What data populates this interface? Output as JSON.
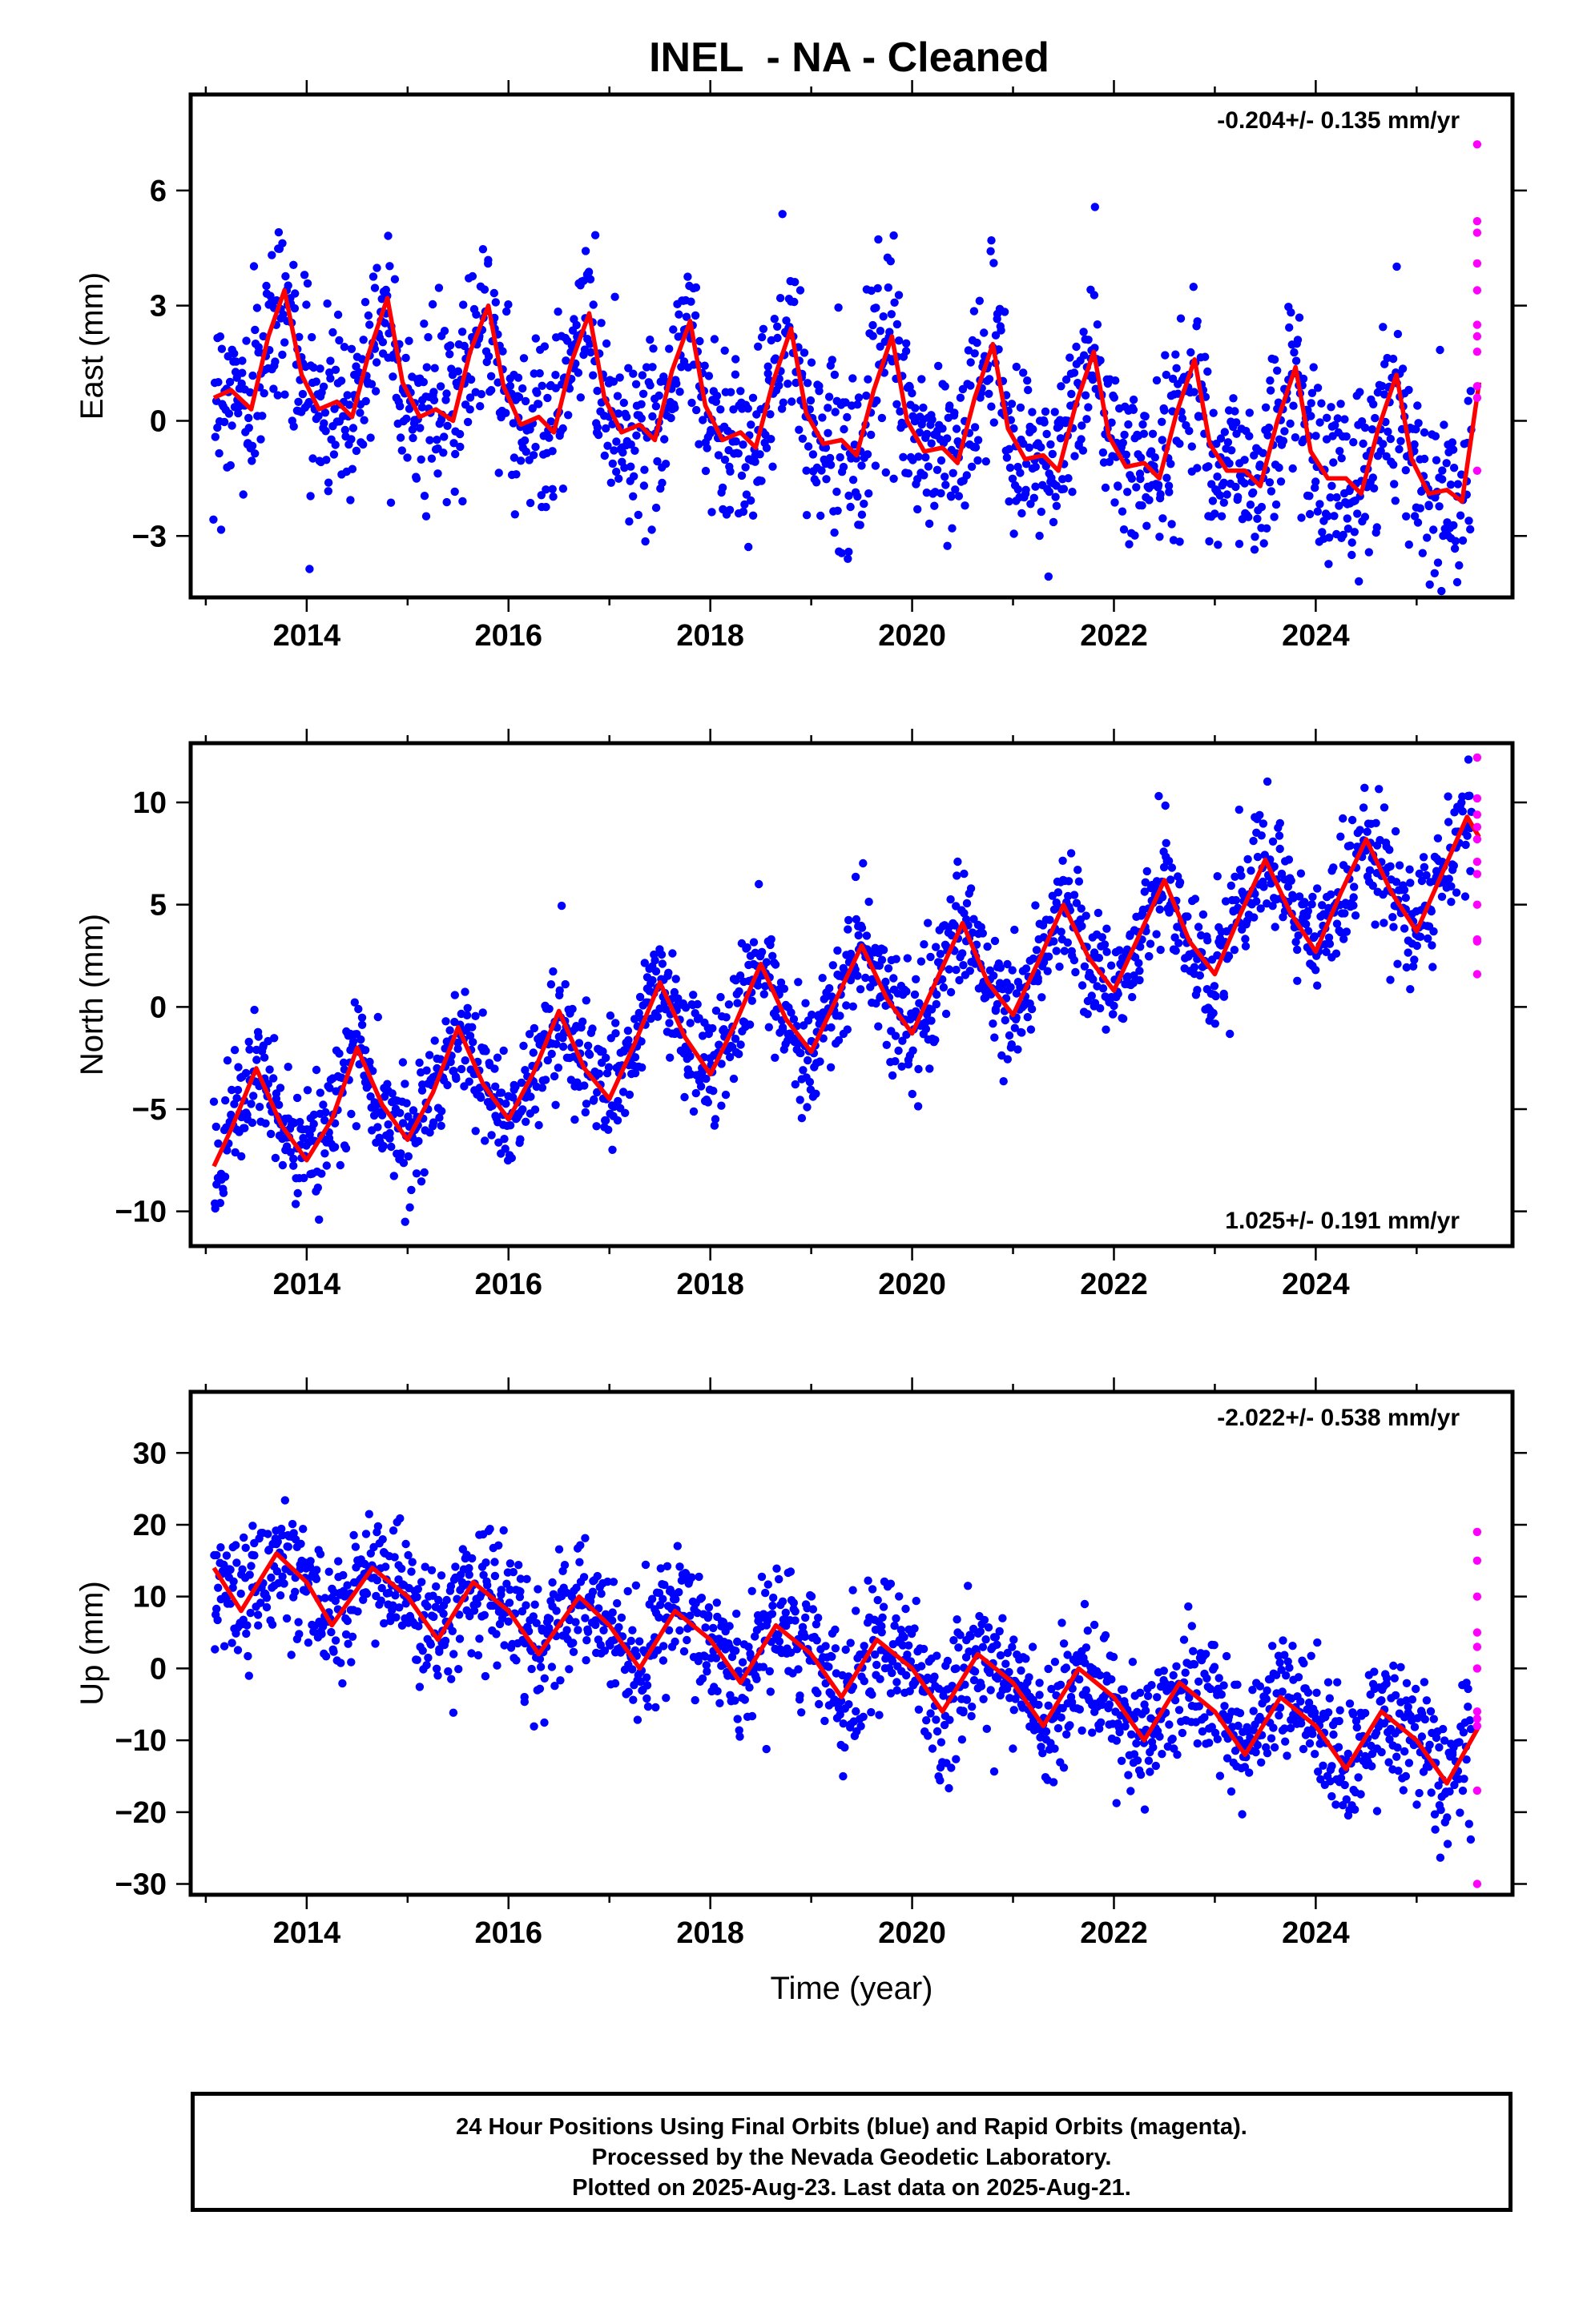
{
  "title": "INEL  - NA - Cleaned",
  "footer": {
    "line1": "24 Hour Positions Using Final Orbits (blue) and Rapid Orbits (magenta).",
    "line2": "Processed by the Nevada Geodetic Laboratory.",
    "line3": "Plotted on 2025-Aug-23. Last data on 2025-Aug-21."
  },
  "colors": {
    "final_orbits": "#0000ff",
    "rapid_orbits": "#ff00ff",
    "model": "#ff0000",
    "axis": "#000000"
  },
  "chart_data": [
    {
      "type": "scatter",
      "panel": "east",
      "title": "",
      "xlabel": "",
      "ylabel": "East (mm)",
      "xlim": [
        2012.85,
        2025.95
      ],
      "ylim": [
        -4.6,
        8.5
      ],
      "xticks": [
        2014,
        2016,
        2018,
        2020,
        2022,
        2024
      ],
      "xtick_labels": [
        "2014",
        "2016",
        "2018",
        "2020",
        "2022",
        "2024"
      ],
      "yticks": [
        -3,
        0,
        3,
        6
      ],
      "ytick_labels": [
        "−3",
        "0",
        "3",
        "6"
      ],
      "rate_label": "-0.204+/- 0.135 mm/yr",
      "rate_position": "top-right",
      "grid": false,
      "series": [
        {
          "kind": "model",
          "x": [
            2013.08,
            2013.25,
            2013.45,
            2013.62,
            2013.78,
            2013.95,
            2014.12,
            2014.3,
            2014.45,
            2014.62,
            2014.8,
            2014.95,
            2015.12,
            2015.28,
            2015.45,
            2015.62,
            2015.8,
            2015.95,
            2016.12,
            2016.3,
            2016.45,
            2016.62,
            2016.8,
            2016.95,
            2017.12,
            2017.3,
            2017.45,
            2017.62,
            2017.8,
            2017.95,
            2018.12,
            2018.3,
            2018.45,
            2018.62,
            2018.8,
            2018.95,
            2019.12,
            2019.3,
            2019.45,
            2019.62,
            2019.8,
            2019.95,
            2020.12,
            2020.3,
            2020.45,
            2020.62,
            2020.8,
            2020.95,
            2021.12,
            2021.3,
            2021.45,
            2021.62,
            2021.8,
            2021.95,
            2022.12,
            2022.3,
            2022.45,
            2022.62,
            2022.8,
            2022.95,
            2023.12,
            2023.3,
            2023.45,
            2023.62,
            2023.8,
            2023.95,
            2024.12,
            2024.3,
            2024.45,
            2024.62,
            2024.8,
            2024.95,
            2025.12,
            2025.3,
            2025.45,
            2025.62
          ],
          "y": [
            0.6,
            0.8,
            0.3,
            2.2,
            3.4,
            1.2,
            0.3,
            0.5,
            0.1,
            1.8,
            3.2,
            1.0,
            0.1,
            0.3,
            0.0,
            1.8,
            3.0,
            0.9,
            -0.1,
            0.1,
            -0.3,
            1.5,
            2.8,
            0.6,
            -0.3,
            -0.1,
            -0.5,
            1.3,
            2.6,
            0.4,
            -0.5,
            -0.3,
            -0.7,
            1.0,
            2.4,
            0.2,
            -0.6,
            -0.5,
            -0.9,
            0.8,
            2.2,
            0.0,
            -0.8,
            -0.7,
            -1.1,
            0.6,
            2.0,
            -0.2,
            -1.0,
            -0.9,
            -1.3,
            0.4,
            1.8,
            -0.4,
            -1.2,
            -1.1,
            -1.5,
            0.2,
            1.6,
            -0.6,
            -1.3,
            -1.3,
            -1.7,
            0.0,
            1.4,
            -0.8,
            -1.5,
            -1.5,
            -1.9,
            -0.2,
            1.2,
            -1.0,
            -1.9,
            -1.8,
            -2.1,
            1.0
          ]
        },
        {
          "kind": "rapid",
          "x": [
            2025.6,
            2025.6,
            2025.6,
            2025.6,
            2025.6,
            2025.6,
            2025.6,
            2025.6,
            2025.6,
            2025.6,
            2025.6
          ],
          "y": [
            7.2,
            5.2,
            4.9,
            4.1,
            3.4,
            2.5,
            2.2,
            1.8,
            0.9,
            0.6,
            -1.3
          ]
        }
      ]
    },
    {
      "type": "scatter",
      "panel": "north",
      "title": "",
      "xlabel": "",
      "ylabel": "North (mm)",
      "xlim": [
        2012.85,
        2025.95
      ],
      "ylim": [
        -11.7,
        12.9
      ],
      "xticks": [
        2014,
        2016,
        2018,
        2020,
        2022,
        2024
      ],
      "xtick_labels": [
        "2014",
        "2016",
        "2018",
        "2020",
        "2022",
        "2024"
      ],
      "yticks": [
        -10,
        -5,
        0,
        5,
        10
      ],
      "ytick_labels": [
        "−10",
        "−5",
        "0",
        "5",
        "10"
      ],
      "rate_label": "1.025+/- 0.191 mm/yr",
      "rate_position": "bottom-right",
      "grid": false,
      "series": [
        {
          "kind": "model",
          "x": [
            2013.08,
            2013.25,
            2013.5,
            2013.75,
            2014.0,
            2014.25,
            2014.5,
            2014.75,
            2015.0,
            2015.25,
            2015.5,
            2015.75,
            2016.0,
            2016.25,
            2016.5,
            2016.75,
            2017.0,
            2017.25,
            2017.5,
            2017.75,
            2018.0,
            2018.25,
            2018.5,
            2018.75,
            2019.0,
            2019.25,
            2019.5,
            2019.75,
            2020.0,
            2020.25,
            2020.5,
            2020.75,
            2021.0,
            2021.25,
            2021.5,
            2021.75,
            2022.0,
            2022.25,
            2022.5,
            2022.75,
            2023.0,
            2023.25,
            2023.5,
            2023.75,
            2024.0,
            2024.25,
            2024.5,
            2024.75,
            2025.0,
            2025.25,
            2025.5,
            2025.62
          ],
          "y": [
            -7.8,
            -6.0,
            -3.0,
            -5.8,
            -7.5,
            -5.5,
            -2.0,
            -4.8,
            -6.5,
            -4.2,
            -1.0,
            -3.8,
            -5.5,
            -3.2,
            -0.2,
            -3.0,
            -4.5,
            -1.8,
            1.2,
            -1.5,
            -3.3,
            -0.8,
            2.1,
            -0.6,
            -2.2,
            0.4,
            3.0,
            0.4,
            -1.3,
            1.4,
            4.1,
            1.2,
            -0.4,
            2.2,
            5.0,
            2.4,
            0.8,
            3.5,
            6.2,
            3.2,
            1.6,
            4.5,
            7.2,
            4.6,
            2.7,
            5.6,
            8.2,
            5.6,
            3.7,
            6.5,
            9.3,
            8.3
          ]
        },
        {
          "kind": "rapid",
          "x": [
            2025.6,
            2025.6,
            2025.6,
            2025.6,
            2025.6,
            2025.6,
            2025.6,
            2025.6,
            2025.6,
            2025.6,
            2025.6
          ],
          "y": [
            12.2,
            10.2,
            9.4,
            8.8,
            8.2,
            7.1,
            6.5,
            5.0,
            3.3,
            3.2,
            1.6
          ]
        }
      ]
    },
    {
      "type": "scatter",
      "panel": "up",
      "title": "",
      "xlabel": "Time (year)",
      "ylabel": "Up (mm)",
      "xlim": [
        2012.85,
        2025.95
      ],
      "ylim": [
        -31.5,
        38.5
      ],
      "xticks": [
        2014,
        2016,
        2018,
        2020,
        2022,
        2024
      ],
      "xtick_labels": [
        "2014",
        "2016",
        "2018",
        "2020",
        "2022",
        "2024"
      ],
      "yticks": [
        -30,
        -20,
        -10,
        0,
        10,
        20,
        30
      ],
      "ytick_labels": [
        "−30",
        "−20",
        "−10",
        "0",
        "10",
        "20",
        "30"
      ],
      "rate_label": "-2.022+/- 0.538 mm/yr",
      "rate_position": "top-right",
      "grid": false,
      "series": [
        {
          "kind": "model",
          "x": [
            2013.08,
            2013.35,
            2013.7,
            2014.0,
            2014.25,
            2014.65,
            2015.0,
            2015.3,
            2015.65,
            2016.0,
            2016.3,
            2016.7,
            2017.0,
            2017.3,
            2017.65,
            2018.0,
            2018.3,
            2018.65,
            2019.0,
            2019.3,
            2019.65,
            2020.0,
            2020.3,
            2020.65,
            2021.0,
            2021.3,
            2021.65,
            2022.0,
            2022.3,
            2022.65,
            2023.0,
            2023.3,
            2023.65,
            2024.0,
            2024.3,
            2024.65,
            2025.0,
            2025.3,
            2025.62
          ],
          "y": [
            14.0,
            8.0,
            16.0,
            12.0,
            6.0,
            14.0,
            10.0,
            4.0,
            12.0,
            8.0,
            2.0,
            10.0,
            6.0,
            0.0,
            8.0,
            4.0,
            -2.0,
            6.0,
            2.0,
            -4.0,
            4.0,
            0.0,
            -6.0,
            2.0,
            -2.0,
            -8.0,
            0.0,
            -4.0,
            -10.0,
            -2.0,
            -6.0,
            -12.0,
            -4.0,
            -8.0,
            -14.0,
            -6.0,
            -10.0,
            -16.0,
            -8.0
          ]
        },
        {
          "kind": "rapid",
          "x": [
            2025.6,
            2025.6,
            2025.6,
            2025.6,
            2025.6,
            2025.6,
            2025.6,
            2025.6,
            2025.6,
            2025.6,
            2025.6
          ],
          "y": [
            19.0,
            15.0,
            10.0,
            5.0,
            3.0,
            0.0,
            -6.0,
            -7.0,
            -8.0,
            -17.0,
            -30.0
          ]
        }
      ]
    }
  ]
}
